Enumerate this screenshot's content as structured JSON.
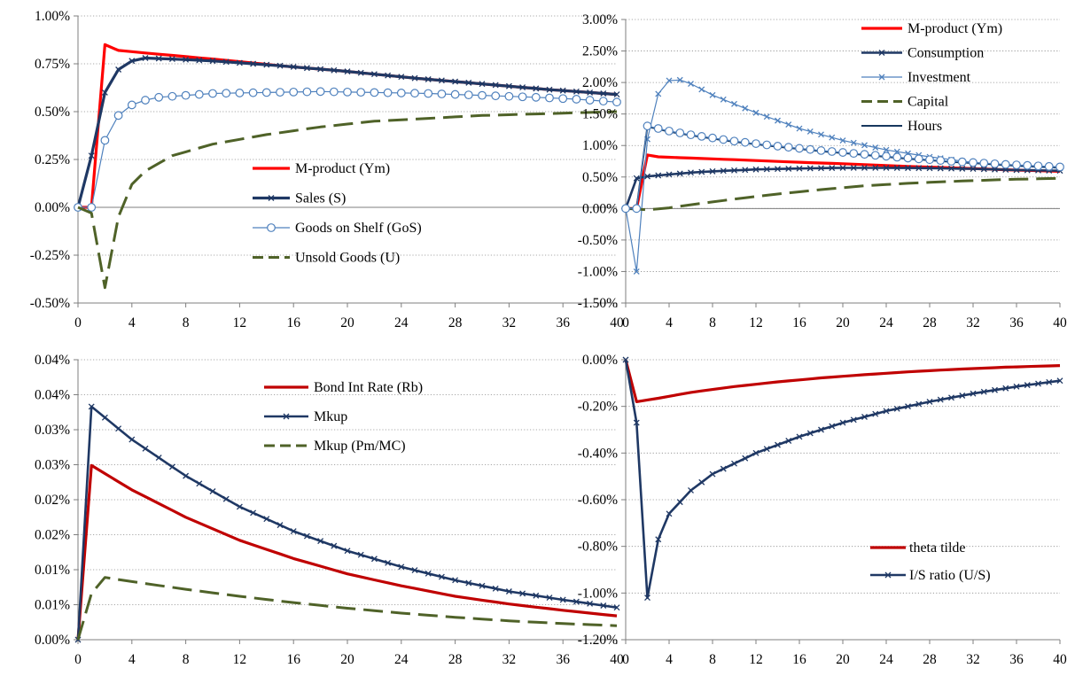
{
  "chart_data": [
    {
      "type": "line",
      "ylim": [
        -0.5,
        1.0
      ],
      "yticks": [
        -0.5,
        -0.25,
        0.0,
        0.25,
        0.5,
        0.75,
        1.0
      ],
      "ytick_labels": [
        "-0.50%",
        "-0.25%",
        "0.00%",
        "0.25%",
        "0.50%",
        "0.75%",
        "1.00%"
      ],
      "xlim": [
        0,
        40
      ],
      "xticks": [
        0,
        4,
        8,
        12,
        16,
        20,
        24,
        28,
        32,
        36,
        40
      ],
      "xtick_labels": [
        "0",
        "4",
        "8",
        "12",
        "16",
        "20",
        "24",
        "28",
        "32",
        "36",
        "40"
      ],
      "grid": "horizontal dotted",
      "legend_position": "center-right",
      "series": [
        {
          "name": "M-product (Ym)",
          "color": "#ff0000",
          "dash": "solid",
          "marker": "none",
          "width": 3.2,
          "knots": [
            [
              0,
              0
            ],
            [
              1,
              0
            ],
            [
              2,
              0.85
            ],
            [
              3,
              0.82
            ],
            [
              6,
              0.8
            ],
            [
              10,
              0.775
            ],
            [
              15,
              0.74
            ],
            [
              20,
              0.71
            ],
            [
              25,
              0.675
            ],
            [
              30,
              0.645
            ],
            [
              35,
              0.615
            ],
            [
              40,
              0.59
            ]
          ]
        },
        {
          "name": "Sales (S)",
          "color": "#1f3864",
          "dash": "solid",
          "marker": "x",
          "width": 3.2,
          "knots": [
            [
              0,
              0
            ],
            [
              1,
              0.27
            ],
            [
              2,
              0.6
            ],
            [
              3,
              0.72
            ],
            [
              4,
              0.765
            ],
            [
              5,
              0.78
            ],
            [
              7,
              0.775
            ],
            [
              10,
              0.765
            ],
            [
              15,
              0.74
            ],
            [
              20,
              0.71
            ],
            [
              25,
              0.675
            ],
            [
              30,
              0.645
            ],
            [
              35,
              0.615
            ],
            [
              40,
              0.59
            ]
          ]
        },
        {
          "name": "Goods on Shelf (GoS)",
          "color": "#4f81bd",
          "dash": "solid",
          "marker": "circle",
          "width": 1.2,
          "knots": [
            [
              0,
              0
            ],
            [
              1,
              0
            ],
            [
              2,
              0.35
            ],
            [
              3,
              0.48
            ],
            [
              4,
              0.535
            ],
            [
              5,
              0.56
            ],
            [
              6,
              0.575
            ],
            [
              8,
              0.585
            ],
            [
              10,
              0.595
            ],
            [
              14,
              0.6
            ],
            [
              18,
              0.605
            ],
            [
              22,
              0.6
            ],
            [
              26,
              0.595
            ],
            [
              30,
              0.585
            ],
            [
              34,
              0.575
            ],
            [
              37,
              0.565
            ],
            [
              40,
              0.55
            ]
          ]
        },
        {
          "name": "Unsold Goods (U)",
          "color": "#4f6228",
          "dash": "long",
          "marker": "none",
          "width": 3.0,
          "knots": [
            [
              0,
              0
            ],
            [
              1,
              -0.03
            ],
            [
              2,
              -0.42
            ],
            [
              3,
              -0.05
            ],
            [
              4,
              0.12
            ],
            [
              5,
              0.19
            ],
            [
              7,
              0.27
            ],
            [
              10,
              0.33
            ],
            [
              14,
              0.38
            ],
            [
              18,
              0.42
            ],
            [
              22,
              0.45
            ],
            [
              26,
              0.465
            ],
            [
              30,
              0.48
            ],
            [
              35,
              0.49
            ],
            [
              40,
              0.5
            ]
          ]
        }
      ]
    },
    {
      "type": "line",
      "ylim": [
        -1.5,
        3.0
      ],
      "yticks": [
        -1.5,
        -1.0,
        -0.5,
        0.0,
        0.5,
        1.0,
        1.5,
        2.0,
        2.5,
        3.0
      ],
      "ytick_labels": [
        "-1.50%",
        "-1.00%",
        "-0.50%",
        "0.00%",
        "0.50%",
        "1.00%",
        "1.50%",
        "2.00%",
        "2.50%",
        "3.00%"
      ],
      "xlim": [
        0,
        40
      ],
      "xticks": [
        0,
        4,
        8,
        12,
        16,
        20,
        24,
        28,
        32,
        36,
        40
      ],
      "xtick_labels": [
        "0",
        "4",
        "8",
        "12",
        "16",
        "20",
        "24",
        "28",
        "32",
        "36",
        "40"
      ],
      "grid": "horizontal dotted",
      "legend_position": "top-right",
      "series": [
        {
          "name": "M-product (Ym)",
          "color": "#ff0000",
          "dash": "solid",
          "marker": "none",
          "width": 3.2,
          "knots": [
            [
              0,
              0
            ],
            [
              1,
              0
            ],
            [
              2,
              0.85
            ],
            [
              3,
              0.82
            ],
            [
              6,
              0.8
            ],
            [
              10,
              0.775
            ],
            [
              15,
              0.74
            ],
            [
              20,
              0.71
            ],
            [
              25,
              0.675
            ],
            [
              30,
              0.645
            ],
            [
              35,
              0.615
            ],
            [
              40,
              0.59
            ]
          ]
        },
        {
          "name": "Consumption",
          "color": "#1f3864",
          "dash": "solid",
          "marker": "x",
          "width": 2.6,
          "knots": [
            [
              0,
              0
            ],
            [
              1,
              0.48
            ],
            [
              2,
              0.51
            ],
            [
              4,
              0.54
            ],
            [
              6,
              0.57
            ],
            [
              8,
              0.59
            ],
            [
              12,
              0.62
            ],
            [
              16,
              0.635
            ],
            [
              20,
              0.645
            ],
            [
              24,
              0.645
            ],
            [
              28,
              0.64
            ],
            [
              32,
              0.63
            ],
            [
              36,
              0.61
            ],
            [
              40,
              0.6
            ]
          ]
        },
        {
          "name": "Investment",
          "color": "#4f81bd",
          "dash": "solid",
          "marker": "x",
          "width": 1.2,
          "knots": [
            [
              0,
              0
            ],
            [
              1,
              -1.0
            ],
            [
              2,
              1.1
            ],
            [
              3,
              1.82
            ],
            [
              4,
              2.03
            ],
            [
              5,
              2.04
            ],
            [
              6,
              1.98
            ],
            [
              8,
              1.8
            ],
            [
              12,
              1.52
            ],
            [
              16,
              1.27
            ],
            [
              20,
              1.08
            ],
            [
              24,
              0.93
            ],
            [
              28,
              0.82
            ],
            [
              32,
              0.73
            ],
            [
              36,
              0.67
            ],
            [
              40,
              0.64
            ]
          ]
        },
        {
          "name": "Capital",
          "color": "#4f6228",
          "dash": "long",
          "marker": "none",
          "width": 3.0,
          "knots": [
            [
              0,
              0
            ],
            [
              1,
              -0.01
            ],
            [
              2,
              -0.02
            ],
            [
              4,
              0.01
            ],
            [
              6,
              0.06
            ],
            [
              10,
              0.15
            ],
            [
              14,
              0.23
            ],
            [
              18,
              0.3
            ],
            [
              22,
              0.36
            ],
            [
              26,
              0.4
            ],
            [
              30,
              0.43
            ],
            [
              35,
              0.46
            ],
            [
              40,
              0.48
            ]
          ]
        },
        {
          "name": "Hours",
          "color": "#17375e",
          "dash": "solid",
          "marker": "none",
          "width": 2.0,
          "knots": [
            [
              0,
              0
            ],
            [
              1,
              0
            ],
            [
              2,
              1.3
            ],
            [
              3,
              1.26
            ],
            [
              4,
              1.22
            ],
            [
              6,
              1.16
            ],
            [
              10,
              1.06
            ],
            [
              14,
              0.98
            ],
            [
              18,
              0.91
            ],
            [
              22,
              0.85
            ],
            [
              26,
              0.79
            ],
            [
              30,
              0.74
            ],
            [
              35,
              0.69
            ],
            [
              40,
              0.65
            ]
          ]
        },
        {
          "name": "",
          "color": "#4f81bd",
          "dash": "solid",
          "marker": "circle",
          "width": 1.2,
          "knots": [
            [
              0,
              0
            ],
            [
              1,
              0
            ],
            [
              2,
              1.31
            ],
            [
              3,
              1.27
            ],
            [
              4,
              1.23
            ],
            [
              6,
              1.17
            ],
            [
              10,
              1.07
            ],
            [
              14,
              0.99
            ],
            [
              18,
              0.92
            ],
            [
              22,
              0.86
            ],
            [
              26,
              0.8
            ],
            [
              30,
              0.75
            ],
            [
              35,
              0.7
            ],
            [
              40,
              0.66
            ]
          ]
        }
      ]
    },
    {
      "type": "line",
      "ylim": [
        0.0,
        0.04
      ],
      "yticks": [
        0.0,
        0.005,
        0.01,
        0.015,
        0.02,
        0.025,
        0.03,
        0.035,
        0.04
      ],
      "ytick_labels": [
        "0.00%",
        "0.01%",
        "0.01%",
        "0.02%",
        "0.02%",
        "0.03%",
        "0.03%",
        "0.04%",
        "0.04%"
      ],
      "xlim": [
        0,
        40
      ],
      "xticks": [
        0,
        4,
        8,
        12,
        16,
        20,
        24,
        28,
        32,
        36,
        40
      ],
      "xtick_labels": [
        "0",
        "4",
        "8",
        "12",
        "16",
        "20",
        "24",
        "28",
        "32",
        "36",
        "40"
      ],
      "grid": "horizontal dotted",
      "legend_position": "top-right",
      "series": [
        {
          "name": "Bond Int Rate (Rb)",
          "color": "#c00000",
          "dash": "solid",
          "marker": "none",
          "width": 3.2,
          "knots": [
            [
              0,
              0
            ],
            [
              1,
              0.0249
            ],
            [
              4,
              0.0214
            ],
            [
              8,
              0.0175
            ],
            [
              12,
              0.0142
            ],
            [
              16,
              0.0116
            ],
            [
              20,
              0.0094
            ],
            [
              24,
              0.0077
            ],
            [
              28,
              0.0062
            ],
            [
              32,
              0.0051
            ],
            [
              36,
              0.0042
            ],
            [
              40,
              0.0034
            ]
          ]
        },
        {
          "name": "Mkup",
          "color": "#1f3864",
          "dash": "solid",
          "marker": "x",
          "width": 2.6,
          "knots": [
            [
              0,
              0
            ],
            [
              1,
              0.0333
            ],
            [
              4,
              0.0286
            ],
            [
              8,
              0.0234
            ],
            [
              12,
              0.019
            ],
            [
              16,
              0.0155
            ],
            [
              20,
              0.0127
            ],
            [
              24,
              0.0104
            ],
            [
              28,
              0.0085
            ],
            [
              32,
              0.0069
            ],
            [
              36,
              0.0057
            ],
            [
              40,
              0.0046
            ]
          ]
        },
        {
          "name": "Mkup (Pm/MC)",
          "color": "#4f6228",
          "dash": "long",
          "marker": "none",
          "width": 3.0,
          "knots": [
            [
              0,
              0
            ],
            [
              1,
              0.0066
            ],
            [
              2,
              0.0089
            ],
            [
              4,
              0.0083
            ],
            [
              8,
              0.0072
            ],
            [
              12,
              0.0062
            ],
            [
              16,
              0.0053
            ],
            [
              20,
              0.0045
            ],
            [
              24,
              0.0038
            ],
            [
              28,
              0.0032
            ],
            [
              32,
              0.0027
            ],
            [
              36,
              0.0023
            ],
            [
              40,
              0.002
            ]
          ]
        }
      ]
    },
    {
      "type": "line",
      "ylim": [
        -1.2,
        0.0
      ],
      "yticks": [
        -1.2,
        -1.0,
        -0.8,
        -0.6,
        -0.4,
        -0.2,
        0.0
      ],
      "ytick_labels": [
        "-1.20%",
        "-1.00%",
        "-0.80%",
        "-0.60%",
        "-0.40%",
        "-0.20%",
        "0.00%"
      ],
      "xlim": [
        0,
        40
      ],
      "xticks": [
        0,
        4,
        8,
        12,
        16,
        20,
        24,
        28,
        32,
        36,
        40
      ],
      "xtick_labels": [
        "0",
        "4",
        "8",
        "12",
        "16",
        "20",
        "24",
        "28",
        "32",
        "36",
        "40"
      ],
      "grid": "horizontal dotted",
      "legend_position": "bottom-right",
      "series": [
        {
          "name": "theta tilde",
          "color": "#c00000",
          "dash": "solid",
          "marker": "none",
          "width": 3.2,
          "knots": [
            [
              0,
              0
            ],
            [
              1,
              -0.18
            ],
            [
              3,
              -0.165
            ],
            [
              6,
              -0.14
            ],
            [
              10,
              -0.115
            ],
            [
              14,
              -0.095
            ],
            [
              18,
              -0.078
            ],
            [
              22,
              -0.064
            ],
            [
              26,
              -0.052
            ],
            [
              30,
              -0.042
            ],
            [
              35,
              -0.032
            ],
            [
              40,
              -0.025
            ]
          ]
        },
        {
          "name": "I/S ratio (U/S)",
          "color": "#1f3864",
          "dash": "solid",
          "marker": "x",
          "width": 2.6,
          "knots": [
            [
              0,
              0
            ],
            [
              1,
              -0.27
            ],
            [
              2,
              -1.02
            ],
            [
              3,
              -0.77
            ],
            [
              4,
              -0.66
            ],
            [
              6,
              -0.56
            ],
            [
              8,
              -0.49
            ],
            [
              12,
              -0.4
            ],
            [
              16,
              -0.33
            ],
            [
              20,
              -0.27
            ],
            [
              24,
              -0.22
            ],
            [
              28,
              -0.18
            ],
            [
              32,
              -0.145
            ],
            [
              36,
              -0.115
            ],
            [
              40,
              -0.09
            ]
          ]
        }
      ]
    }
  ]
}
